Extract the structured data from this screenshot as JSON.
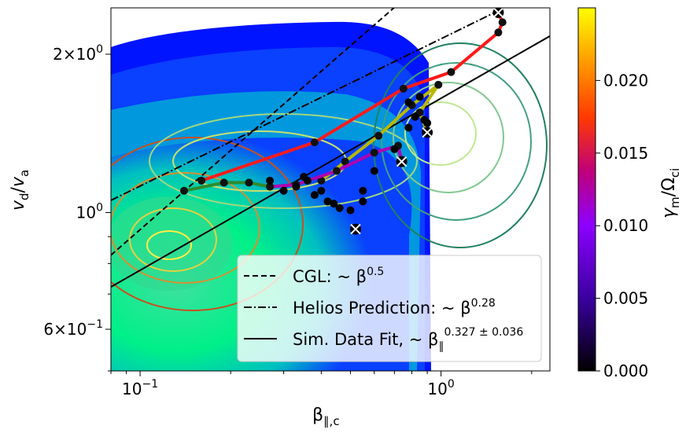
{
  "chart_data": {
    "type": "scatter",
    "xlabel_base": "β",
    "xlabel_sub": "∥,c",
    "ylabel_num": "v",
    "ylabel_num_sub": "d",
    "ylabel_den": "v",
    "ylabel_den_sub": "a",
    "xscale": "log",
    "yscale": "log",
    "xlim": [
      0.08,
      2.3
    ],
    "ylim": [
      0.5,
      2.45
    ],
    "x_ticks": [
      {
        "v": 0.1,
        "b": "10",
        "e": "−1"
      },
      {
        "v": 1,
        "b": "10",
        "e": "0"
      }
    ],
    "y_ticks": [
      {
        "v": 0.6,
        "m": "6",
        "b": "10",
        "e": "−1"
      },
      {
        "v": 1,
        "m": "",
        "b": "10",
        "e": "0"
      },
      {
        "v": 2,
        "m": "2",
        "b": "10",
        "e": "0"
      }
    ],
    "colors": {
      "cgl": "#000000",
      "helios": "#000000",
      "fit": "#000000",
      "red_track": "#ff1a1a",
      "yellow_track": "#b8b800",
      "magenta_track": "#b000b0",
      "green_track": "#2e8b2e",
      "background_fill": "#0014ff",
      "contour_fill": "#00ee88"
    },
    "lines": [
      {
        "id": "cgl",
        "style": "dashed",
        "label_text": "CGL: ~ β",
        "label_exp": "0.5",
        "anchor_x": 0.08,
        "anchor_y": 0.83,
        "slope": 0.5
      },
      {
        "id": "helios",
        "style": "dashdot",
        "label_text": "Helios Prediction: ~ β",
        "label_exp": "0.28",
        "anchor_x": 0.08,
        "anchor_y": 1.055,
        "slope": 0.28
      },
      {
        "id": "fit",
        "style": "solid",
        "label_text": "Sim. Data Fit, ~ β",
        "label_sub": "∥",
        "label_exp": "0.327 ± 0.036",
        "anchor_x": 0.08,
        "anchor_y": 0.722,
        "slope": 0.327
      }
    ],
    "series": [
      {
        "name": "",
        "color": "#ff1a1a",
        "points": [
          [
            0.16,
            1.15
          ],
          [
            0.38,
            1.36
          ],
          [
            0.75,
            1.72
          ],
          [
            1.08,
            1.85
          ],
          [
            1.55,
            2.2
          ],
          [
            1.6,
            2.3
          ],
          [
            1.55,
            2.4
          ]
        ]
      },
      {
        "name": "",
        "color": "#b8b800",
        "points": [
          [
            0.4,
            1.15
          ],
          [
            0.48,
            1.25
          ],
          [
            0.62,
            1.4
          ],
          [
            0.8,
            1.6
          ],
          [
            0.98,
            1.75
          ],
          [
            0.85,
            1.55
          ],
          [
            0.9,
            1.42
          ]
        ]
      },
      {
        "name": "",
        "color": "#b000b0",
        "points": [
          [
            0.27,
            1.12
          ],
          [
            0.33,
            1.13
          ],
          [
            0.45,
            1.2
          ],
          [
            0.6,
            1.3
          ],
          [
            0.72,
            1.34
          ],
          [
            0.74,
            1.25
          ]
        ]
      },
      {
        "name": "",
        "color": "#2e8b2e",
        "points": [
          [
            0.14,
            1.1
          ],
          [
            0.19,
            1.14
          ],
          [
            0.23,
            1.14
          ],
          [
            0.27,
            1.12
          ]
        ]
      }
    ],
    "markers_x": [
      [
        1.55,
        2.4
      ],
      [
        0.9,
        1.42
      ],
      [
        0.74,
        1.25
      ],
      [
        0.52,
        0.93
      ]
    ],
    "black_dots": [
      [
        0.27,
        1.15
      ],
      [
        0.3,
        1.1
      ],
      [
        0.33,
        1.12
      ],
      [
        0.35,
        1.17
      ],
      [
        0.36,
        1.15
      ],
      [
        0.38,
        1.08
      ],
      [
        0.4,
        1.1
      ],
      [
        0.42,
        1.05
      ],
      [
        0.44,
        1.04
      ],
      [
        0.46,
        1.02
      ],
      [
        0.5,
        1.01
      ],
      [
        0.55,
        1.05
      ],
      [
        0.55,
        1.1
      ],
      [
        0.6,
        1.2
      ],
      [
        0.7,
        1.32
      ],
      [
        0.78,
        1.45
      ],
      [
        0.82,
        1.52
      ],
      [
        0.88,
        1.5
      ],
      [
        0.9,
        1.48
      ],
      [
        0.78,
        1.62
      ],
      [
        0.85,
        1.66
      ]
    ],
    "colorbar": {
      "label_base": "γ",
      "label_sub": "m",
      "label_den": "Ω",
      "label_den_sub": "ci",
      "min": 0,
      "max": 0.025,
      "ticks": [
        "0.000",
        "0.005",
        "0.010",
        "0.015",
        "0.020"
      ],
      "tick_values": [
        0,
        0.005,
        0.01,
        0.015,
        0.02
      ]
    }
  }
}
